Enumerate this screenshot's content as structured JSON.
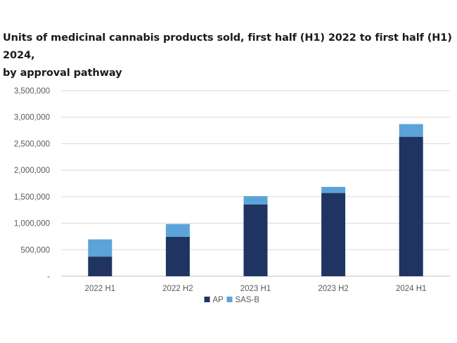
{
  "chart_data": {
    "type": "bar",
    "stacked": true,
    "title": "Units of medicinal cannabis products sold, first half (H1) 2022 to first half (H1) 2024, by approval pathway",
    "title_line1": "Units of medicinal cannabis products sold, first half (H1) 2022 to first half (H1) 2024,",
    "title_line2": "by approval pathway",
    "categories": [
      "2022 H1",
      "2022 H2",
      "2023 H1",
      "2023 H2",
      "2024 H1"
    ],
    "series": [
      {
        "name": "AP",
        "color": "#1f3461",
        "values": [
          370000,
          745000,
          1355000,
          1570000,
          2630000
        ]
      },
      {
        "name": "SAS-B",
        "color": "#5ba3d9",
        "values": [
          325000,
          240000,
          155000,
          115000,
          240000
        ]
      }
    ],
    "ylim": [
      0,
      3500000
    ],
    "yticks": [
      0,
      500000,
      1000000,
      1500000,
      2000000,
      2500000,
      3000000,
      3500000
    ],
    "ytick_labels": [
      "-",
      "500,000",
      "1,000,000",
      "1,500,000",
      "2,000,000",
      "2,500,000",
      "3,000,000",
      "3,500,000"
    ],
    "xlabel": "",
    "ylabel": "",
    "grid": true,
    "legend_position": "bottom"
  }
}
